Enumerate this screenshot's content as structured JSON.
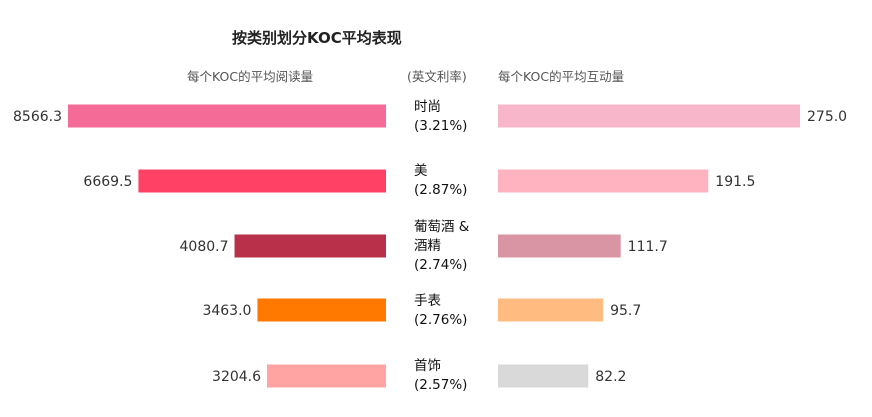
{
  "title": "按类别划分KOC平均表现",
  "left_header": "每个KOC的平均阅读量",
  "middle_header": "(英文利率)",
  "right_header": "每个KOC的平均互动量",
  "chart_data": {
    "type": "bar",
    "orientation": "horizontal",
    "layout": "butterfly",
    "title": "按类别划分KOC平均表现",
    "categories": [
      {
        "name": "时尚",
        "rate": "(3.21%)"
      },
      {
        "name": "美",
        "rate": "(2.87%)"
      },
      {
        "name": "葡萄酒 & 酒精",
        "rate": "(2.74%)"
      },
      {
        "name": "手表",
        "rate": "(2.76%)"
      },
      {
        "name": "首饰",
        "rate": "(2.57%)"
      }
    ],
    "series": [
      {
        "name": "每个KOC的平均阅读量",
        "side": "left",
        "values": [
          8566.3,
          6669.5,
          4080.7,
          3463.0,
          3204.6
        ],
        "labels": [
          "8566.3",
          "6669.5",
          "4080.7",
          "3463.0",
          "3204.6"
        ],
        "colors": [
          "#f56b97",
          "#ff4166",
          "#b8304a",
          "#ff7800",
          "#ffa3a3"
        ]
      },
      {
        "name": "每个KOC的平均互动量",
        "side": "right",
        "values": [
          275.0,
          191.5,
          111.7,
          95.7,
          82.2
        ],
        "labels": [
          "275.0",
          "191.5",
          "111.7",
          "95.7",
          "82.2"
        ],
        "colors": [
          "#f7b6c9",
          "#ffb3c0",
          "#d995a4",
          "#ffbb80",
          "#d9d9d9"
        ]
      }
    ],
    "xlim_left": [
      0,
      8566.3
    ],
    "xlim_right": [
      0,
      275.0
    ],
    "grid": false,
    "legend": "none"
  }
}
